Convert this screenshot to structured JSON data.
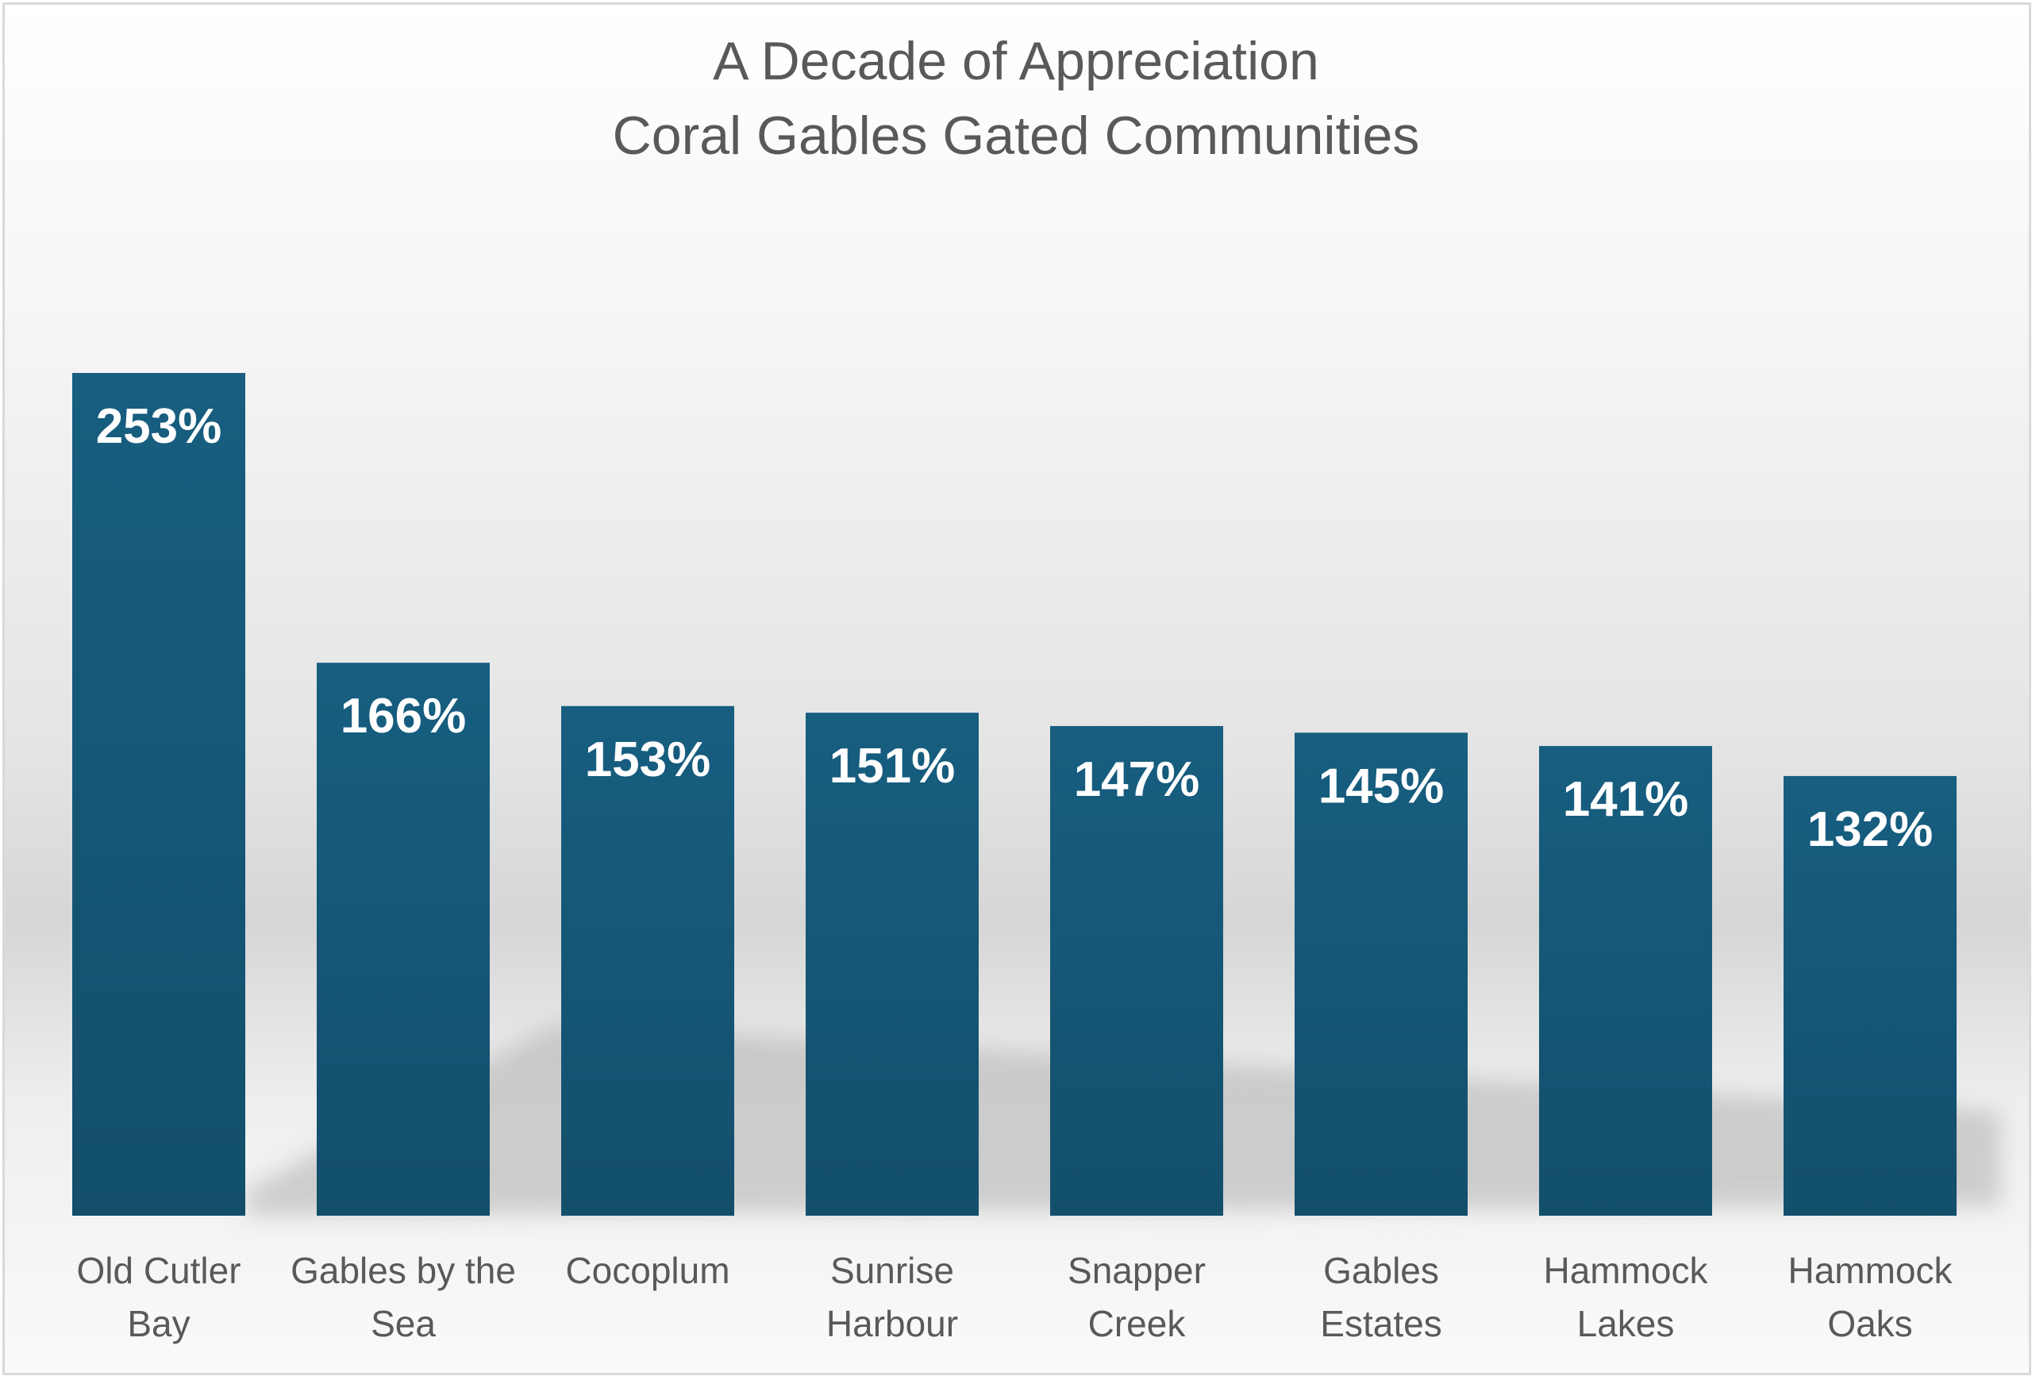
{
  "chart_data": {
    "type": "bar",
    "title": [
      "A Decade of Appreciation",
      "Coral Gables Gated Communities"
    ],
    "categories": [
      [
        "Old Cutler",
        "Bay"
      ],
      [
        "Gables by the",
        "Sea"
      ],
      [
        "Cocoplum"
      ],
      [
        "Sunrise",
        "Harbour"
      ],
      [
        "Snapper",
        "Creek"
      ],
      [
        "Gables",
        "Estates"
      ],
      [
        "Hammock",
        "Lakes"
      ],
      [
        "Hammock",
        "Oaks"
      ]
    ],
    "values": [
      253,
      166,
      153,
      151,
      147,
      145,
      141,
      132
    ],
    "data_labels": [
      "253%",
      "166%",
      "153%",
      "151%",
      "147%",
      "145%",
      "141%",
      "132%"
    ],
    "ylim": [
      0,
      253
    ],
    "grid": false,
    "legend": "none",
    "colors": {
      "bar_top": "#175e80",
      "bar_bottom": "#134f6b",
      "label": "#ffffff",
      "text": "#595959"
    }
  }
}
